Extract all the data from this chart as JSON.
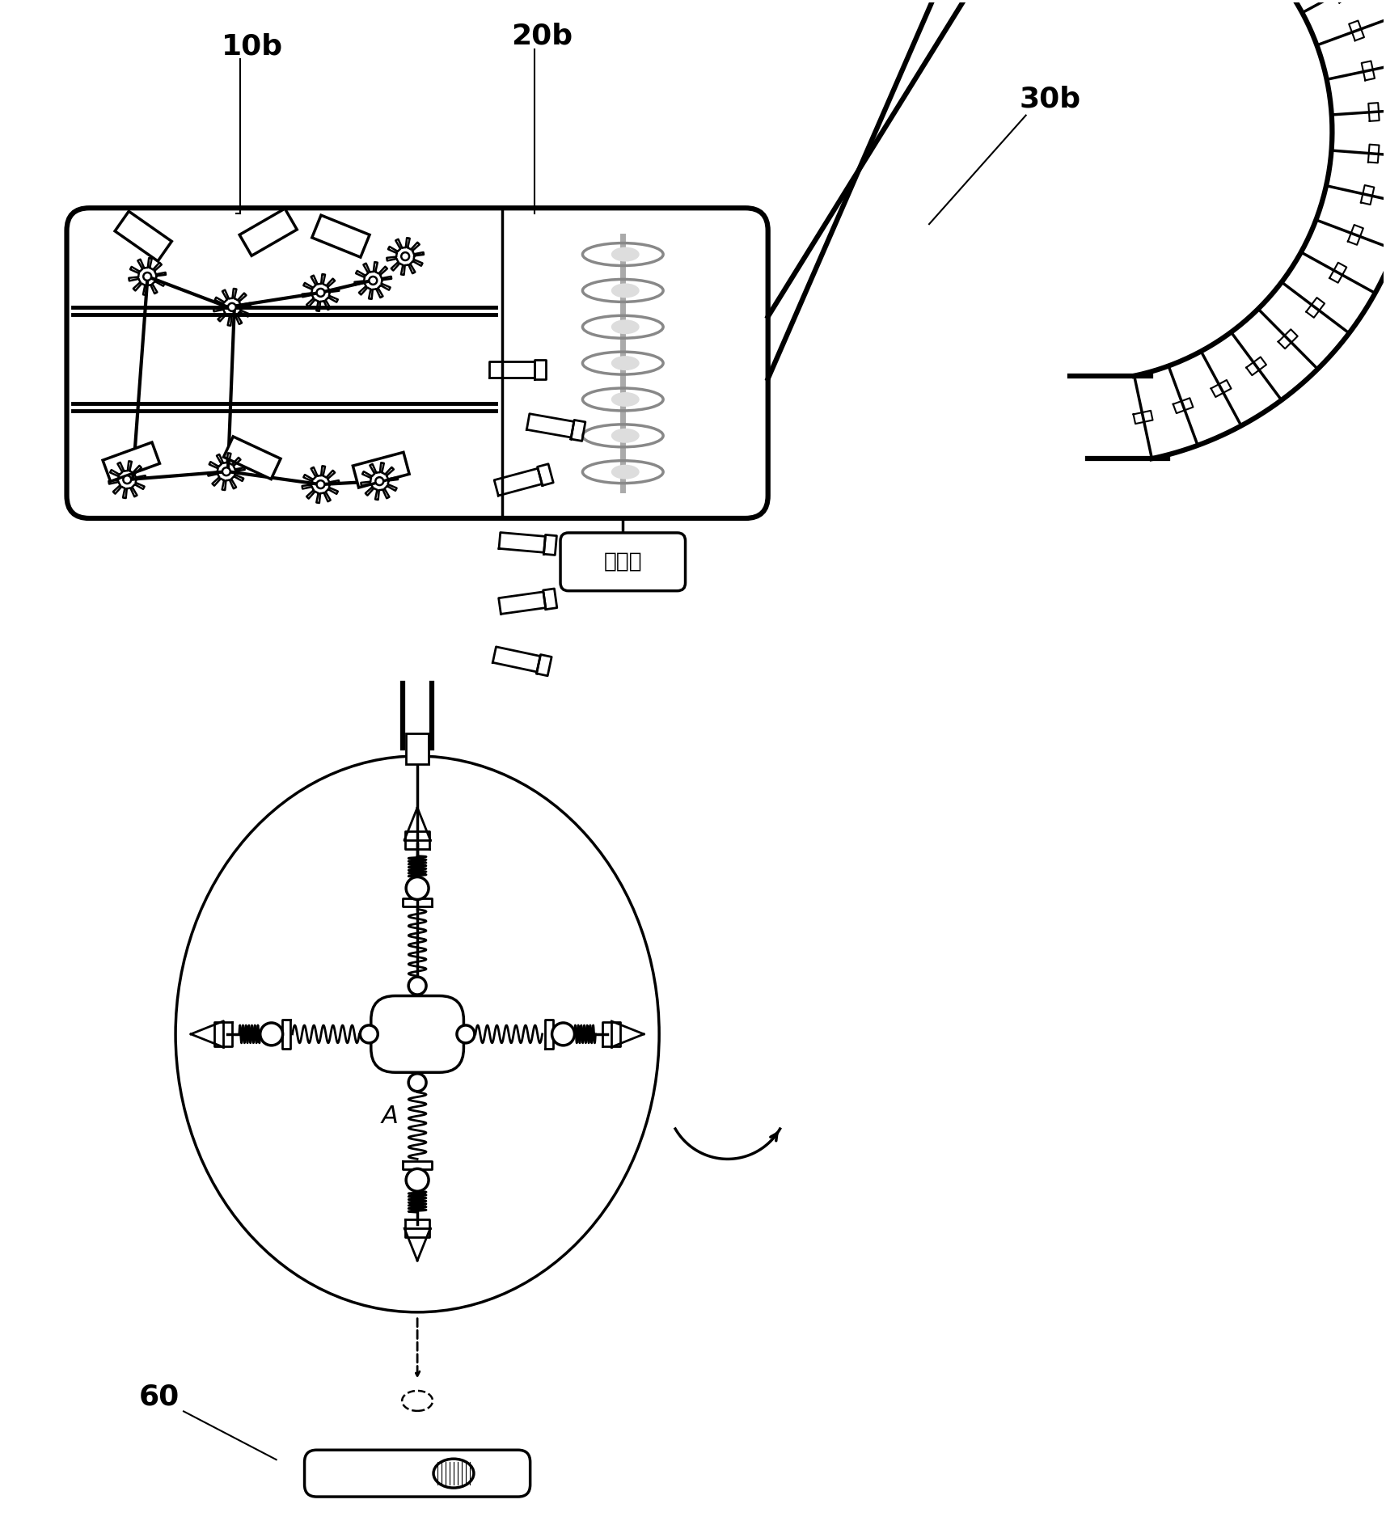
{
  "bg_color": "#ffffff",
  "line_color": "#000000",
  "label_10b": "10b",
  "label_20b": "20b",
  "label_30b": "30b",
  "label_motor": "电动机",
  "label_60": "60",
  "label_A": "A",
  "fig_width": 17.14,
  "fig_height": 18.86,
  "dpi": 100
}
